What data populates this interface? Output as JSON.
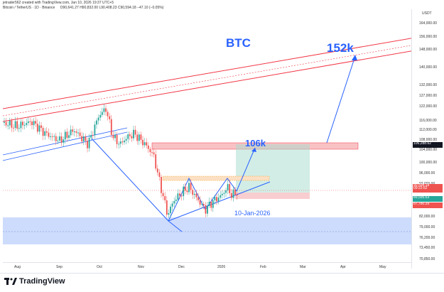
{
  "header": {
    "title": "Bitcoin / TetherUS · 1D · Binance",
    "ohlc": "O90,641.27  H90,832.00  L90,408.23  C90,594.18  −47.10 (−0.05%)",
    "credit": "jetrader562 created with TradingView.com, Jan 10, 2026 19:37 UTC+5"
  },
  "chart": {
    "currency": "USDT",
    "price_labels": [
      "164,000.00",
      "156,000.00",
      "148,000.00",
      "140,000.00",
      "132,000.00",
      "127,000.00",
      "122,000.00",
      "116,000.00",
      "112,000.00",
      "108,000.00",
      "104,000.00",
      "100,000.00",
      "96,000.00",
      "92,000.00",
      "82,000.00",
      "79,000.00",
      "76,200.00",
      "73,450.00",
      "70,850.00"
    ],
    "time_labels": [
      "Aug",
      "Sep",
      "Oct",
      "Nov",
      "Dec",
      "2026",
      "Feb",
      "Mar",
      "Apr",
      "May"
    ],
    "price_tags": {
      "target_top": "106,288.62",
      "current": "90,594.18",
      "countdown": "09:22:52",
      "mid": "89,595.63",
      "stop": "87,780.39"
    }
  },
  "annotations": {
    "symbol": "BTC",
    "target_long": "152k",
    "target_short": "106k",
    "date": "10-Jan-2026"
  },
  "colors": {
    "bull": "#26a69a",
    "bear": "#ef5350",
    "accent": "#2962ff",
    "channel": "#f23645"
  },
  "footer": {
    "brand": "TradingView"
  }
}
